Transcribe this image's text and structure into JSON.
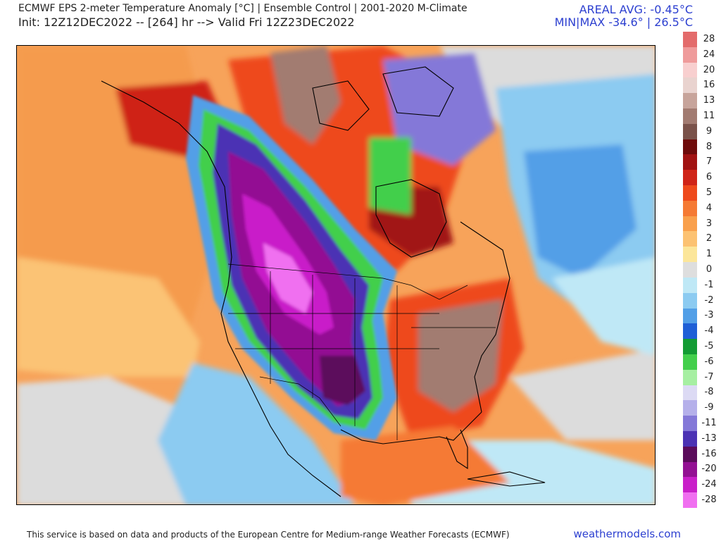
{
  "header": {
    "title": "ECMWF EPS 2-meter Temperature Anomaly [°C] | Ensemble Control | 2001-2020 M-Climate",
    "init_line": "Init: 12Z12DEC2022 -- [264] hr --> Valid Fri 12Z23DEC2022",
    "areal_avg": "AREAL AVG: -0.45°C",
    "min_max": "MIN|MAX -34.6° | 26.5°C"
  },
  "legend": {
    "levels": [
      {
        "label": "28",
        "color": "#e36b6b"
      },
      {
        "label": "24",
        "color": "#ef9b9b"
      },
      {
        "label": "20",
        "color": "#f8cfcf"
      },
      {
        "label": "16",
        "color": "#e9d3cf"
      },
      {
        "label": "13",
        "color": "#c7a49b"
      },
      {
        "label": "11",
        "color": "#a27b71"
      },
      {
        "label": "9",
        "color": "#7a524a"
      },
      {
        "label": "8",
        "color": "#6e0b0b"
      },
      {
        "label": "7",
        "color": "#a11212"
      },
      {
        "label": "6",
        "color": "#cf2418"
      },
      {
        "label": "5",
        "color": "#ee4a1c"
      },
      {
        "label": "4",
        "color": "#f57a34"
      },
      {
        "label": "3",
        "color": "#f9a04c"
      },
      {
        "label": "2",
        "color": "#fcc272"
      },
      {
        "label": "1",
        "color": "#fce69a"
      },
      {
        "label": "0",
        "color": "#dedede"
      },
      {
        "label": "-1",
        "color": "#bfe8f6"
      },
      {
        "label": "-2",
        "color": "#8ccbf1"
      },
      {
        "label": "-3",
        "color": "#529fe7"
      },
      {
        "label": "-4",
        "color": "#1f5fd6"
      },
      {
        "label": "-5",
        "color": "#139b34"
      },
      {
        "label": "-6",
        "color": "#43cf4c"
      },
      {
        "label": "-7",
        "color": "#a6efa2"
      },
      {
        "label": "-8",
        "color": "#dcdaf4"
      },
      {
        "label": "-9",
        "color": "#b5b0ea"
      },
      {
        "label": "-11",
        "color": "#8478d8"
      },
      {
        "label": "-13",
        "color": "#4b32b4"
      },
      {
        "label": "-16",
        "color": "#5b0b5b"
      },
      {
        "label": "-20",
        "color": "#931093"
      },
      {
        "label": "-24",
        "color": "#c91fc9"
      },
      {
        "label": "-28",
        "color": "#f06ff0"
      }
    ]
  },
  "footer": {
    "credit": "This service is based on data and products of the European Centre for Medium-range Weather Forecasts (ECMWF)",
    "site": "weathermodels.com"
  }
}
